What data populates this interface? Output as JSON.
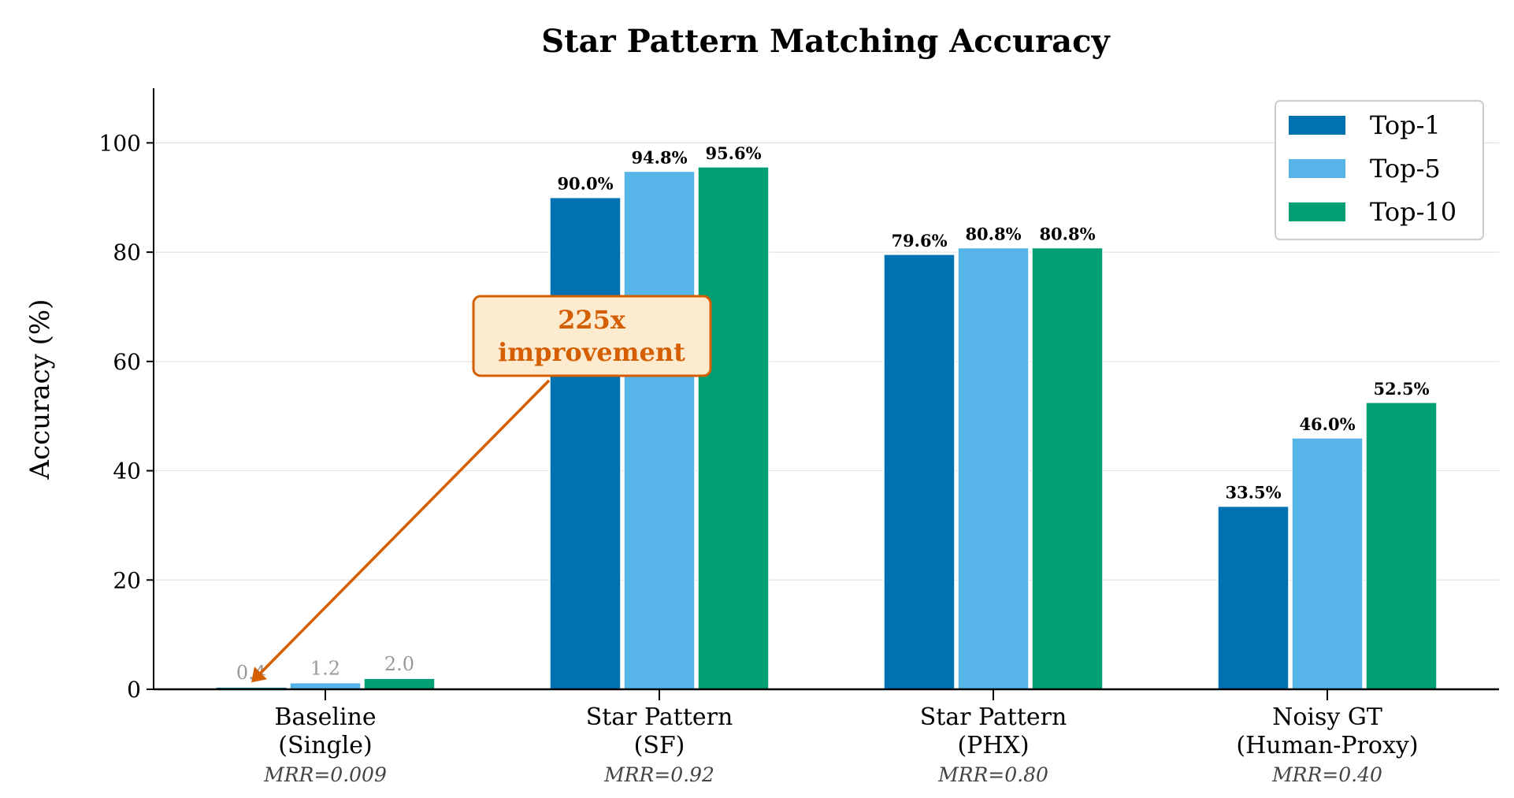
{
  "chart_data": {
    "type": "bar",
    "title": "Star Pattern Matching Accuracy",
    "xlabel": "",
    "ylabel": "Accuracy (%)",
    "ylim": [
      0,
      110
    ],
    "yticks": [
      0,
      20,
      40,
      60,
      80,
      100
    ],
    "ytick_labels": [
      "0",
      "20",
      "40",
      "60",
      "80",
      "100"
    ],
    "grid": "horizontal",
    "categories": [
      {
        "line1": "Baseline",
        "line2": "(Single)",
        "mrr": "MRR=0.009"
      },
      {
        "line1": "Star Pattern",
        "line2": "(SF)",
        "mrr": "MRR=0.92"
      },
      {
        "line1": "Star Pattern",
        "line2": "(PHX)",
        "mrr": "MRR=0.80"
      },
      {
        "line1": "Noisy GT",
        "line2": "(Human-Proxy)",
        "mrr": "MRR=0.40"
      }
    ],
    "series": [
      {
        "name": "Top-1",
        "color": "#0072B2",
        "values": [
          0.4,
          90.0,
          79.6,
          33.5
        ],
        "labels": [
          "0.4",
          "90.0%",
          "79.6%",
          "33.5%"
        ]
      },
      {
        "name": "Top-5",
        "color": "#56B4E9",
        "values": [
          1.2,
          94.8,
          80.8,
          46.0
        ],
        "labels": [
          "1.2",
          "94.8%",
          "80.8%",
          "46.0%"
        ]
      },
      {
        "name": "Top-10",
        "color": "#009E73",
        "values": [
          2.0,
          95.6,
          80.8,
          52.5
        ],
        "labels": [
          "2.0",
          "95.6%",
          "80.8%",
          "52.5%"
        ]
      }
    ],
    "legend_position": "top-right",
    "annotation": {
      "line1": "225x",
      "line2": "improvement",
      "color": "#D55E00",
      "fill": "#FDEBD0",
      "points_to": {
        "category": 0,
        "series": 0
      }
    }
  }
}
